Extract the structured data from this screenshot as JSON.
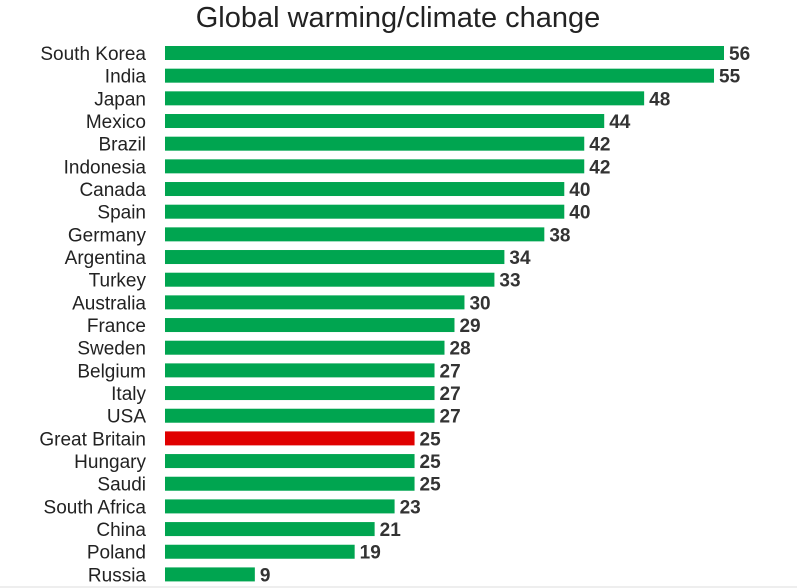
{
  "chart_data": {
    "type": "bar",
    "orientation": "horizontal",
    "title": "Global warming/climate change",
    "xlabel": "",
    "ylabel": "",
    "xlim": [
      0,
      56
    ],
    "grid": false,
    "legend": "none",
    "categories": [
      "South Korea",
      "India",
      "Japan",
      "Mexico",
      "Brazil",
      "Indonesia",
      "Canada",
      "Spain",
      "Germany",
      "Argentina",
      "Turkey",
      "Australia",
      "France",
      "Sweden",
      "Belgium",
      "Italy",
      "USA",
      "Great Britain",
      "Hungary",
      "Saudi",
      "South Africa",
      "China",
      "Poland",
      "Russia"
    ],
    "values": [
      56,
      55,
      48,
      44,
      42,
      42,
      40,
      40,
      38,
      34,
      33,
      30,
      29,
      28,
      27,
      27,
      27,
      25,
      25,
      25,
      23,
      21,
      19,
      9
    ],
    "highlight_category": "Great Britain",
    "colors": {
      "bar": "#00a550",
      "highlight": "#e00000"
    }
  }
}
